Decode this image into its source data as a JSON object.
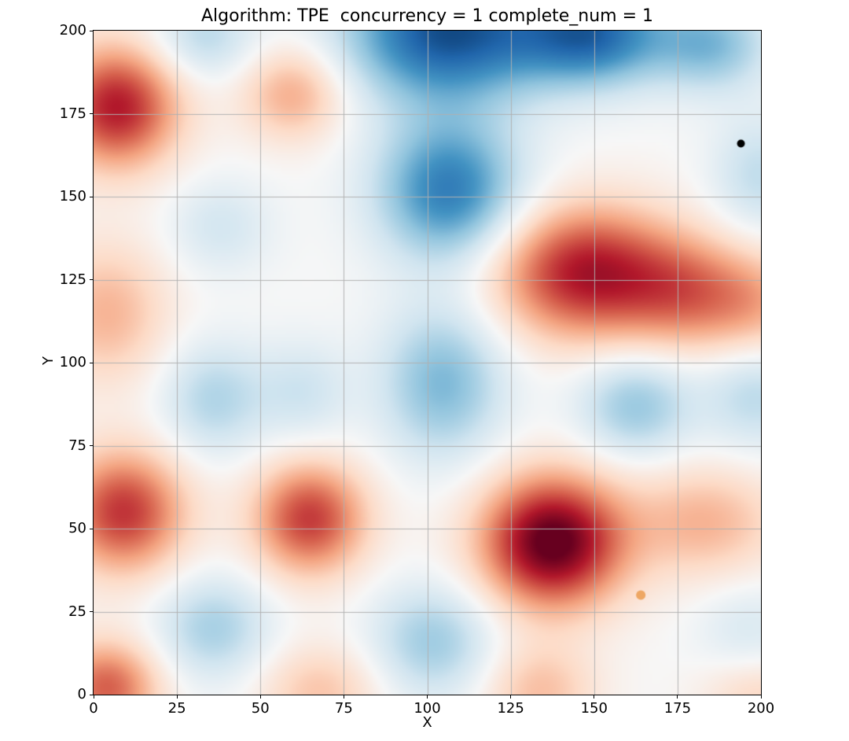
{
  "chart_data": {
    "type": "heatmap",
    "title": "Algorithm: TPE  concurrency = 1 complete_num = 1",
    "xlabel": "X",
    "ylabel": "Y",
    "xlim": [
      0,
      200
    ],
    "ylim": [
      0,
      200
    ],
    "xticks": [
      0,
      25,
      50,
      75,
      100,
      125,
      150,
      175,
      200
    ],
    "yticks": [
      0,
      25,
      50,
      75,
      100,
      125,
      150,
      175,
      200
    ],
    "grid": true,
    "grid_color": "#b0b0b0",
    "colormap": "RdBu_r",
    "colormap_stops": [
      "#053061",
      "#2166ac",
      "#4393c3",
      "#92c5de",
      "#d1e5f0",
      "#f7f7f7",
      "#fddbc7",
      "#f4a582",
      "#d6604d",
      "#b2182b",
      "#67001f"
    ],
    "field_gaussians": [
      {
        "x": 7,
        "y": 177,
        "a": 0.8,
        "sx": 13,
        "sy": 13
      },
      {
        "x": 60,
        "y": 181,
        "a": 0.38,
        "sx": 11,
        "sy": 10
      },
      {
        "x": 4,
        "y": 115,
        "a": 0.34,
        "sx": 13,
        "sy": 15
      },
      {
        "x": 9,
        "y": 55,
        "a": 0.72,
        "sx": 13,
        "sy": 13
      },
      {
        "x": 65,
        "y": 53,
        "a": 0.7,
        "sx": 12,
        "sy": 12
      },
      {
        "x": 138,
        "y": 46,
        "a": 1.05,
        "sx": 15,
        "sy": 14
      },
      {
        "x": 148,
        "y": 127,
        "a": 0.82,
        "sx": 19,
        "sy": 14
      },
      {
        "x": 179,
        "y": 121,
        "a": 0.42,
        "sx": 14,
        "sy": 12
      },
      {
        "x": 200,
        "y": 117,
        "a": 0.3,
        "sx": 12,
        "sy": 12
      },
      {
        "x": 184,
        "y": 52,
        "a": 0.34,
        "sx": 16,
        "sy": 12
      },
      {
        "x": 4,
        "y": 2,
        "a": 0.6,
        "sx": 11,
        "sy": 10
      },
      {
        "x": 68,
        "y": 1,
        "a": 0.28,
        "sx": 13,
        "sy": 10
      },
      {
        "x": 134,
        "y": 1,
        "a": 0.3,
        "sx": 12,
        "sy": 10
      },
      {
        "x": 200,
        "y": 0,
        "a": 0.2,
        "sx": 12,
        "sy": 8
      },
      {
        "x": 106,
        "y": 200,
        "a": -0.88,
        "sx": 21,
        "sy": 15
      },
      {
        "x": 150,
        "y": 199,
        "a": -0.75,
        "sx": 16,
        "sy": 11
      },
      {
        "x": 186,
        "y": 196,
        "a": -0.42,
        "sx": 12,
        "sy": 10
      },
      {
        "x": 107,
        "y": 152,
        "a": -0.7,
        "sx": 15,
        "sy": 15
      },
      {
        "x": 105,
        "y": 94,
        "a": -0.45,
        "sx": 13,
        "sy": 16
      },
      {
        "x": 36,
        "y": 89,
        "a": -0.3,
        "sx": 11,
        "sy": 12
      },
      {
        "x": 63,
        "y": 91,
        "a": -0.2,
        "sx": 10,
        "sy": 11
      },
      {
        "x": 38,
        "y": 141,
        "a": -0.18,
        "sx": 11,
        "sy": 10
      },
      {
        "x": 36,
        "y": 20,
        "a": -0.33,
        "sx": 12,
        "sy": 11
      },
      {
        "x": 102,
        "y": 16,
        "a": -0.36,
        "sx": 13,
        "sy": 12
      },
      {
        "x": 163,
        "y": 87,
        "a": -0.38,
        "sx": 12,
        "sy": 11
      },
      {
        "x": 199,
        "y": 91,
        "a": -0.28,
        "sx": 11,
        "sy": 12
      },
      {
        "x": 200,
        "y": 156,
        "a": -0.25,
        "sx": 10,
        "sy": 13
      },
      {
        "x": 33,
        "y": 198,
        "a": -0.28,
        "sx": 11,
        "sy": 9
      },
      {
        "x": 197,
        "y": 20,
        "a": -0.15,
        "sx": 11,
        "sy": 10
      }
    ],
    "scatter_points": [
      {
        "name": "black-point",
        "x": 194,
        "y": 166,
        "radius": 5,
        "color": "#000000"
      },
      {
        "name": "orange-point",
        "x": 164,
        "y": 30,
        "radius": 6,
        "color": "#eea764"
      }
    ]
  }
}
